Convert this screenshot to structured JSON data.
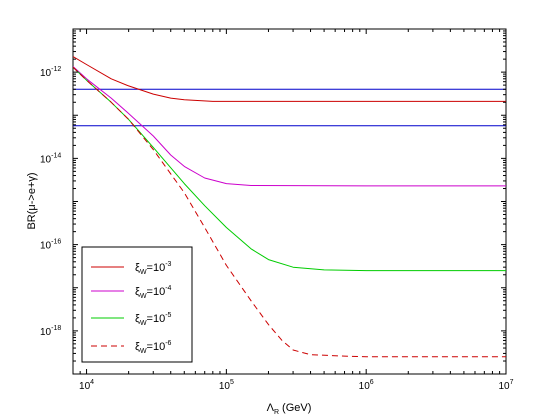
{
  "chart_data": {
    "type": "line",
    "title": "",
    "xlabel": {
      "main": "Λ",
      "sub": "R",
      "unit": " (GeV)"
    },
    "ylabel": "BR(μ->e+γ)",
    "x_scale": "log",
    "y_scale": "log",
    "xlim": [
      8000,
      10000000
    ],
    "ylim": [
      1e-19,
      1e-11
    ],
    "grid": false,
    "x_ticks": [
      {
        "value": 10000,
        "base": "10",
        "exp": "4"
      },
      {
        "value": 100000,
        "base": "10",
        "exp": "5"
      },
      {
        "value": 1000000,
        "base": "10",
        "exp": "6"
      },
      {
        "value": 10000000,
        "base": "10",
        "exp": "7"
      }
    ],
    "y_ticks": [
      {
        "value": 1e-12,
        "base": "10",
        "exp": "-12"
      },
      {
        "value": 1e-14,
        "base": "10",
        "exp": "-14"
      },
      {
        "value": 1e-16,
        "base": "10",
        "exp": "-16"
      },
      {
        "value": 1e-18,
        "base": "10",
        "exp": "-18"
      }
    ],
    "legend_position": "bottom-left",
    "reference_lines": [
      {
        "y": 4e-13,
        "color": "#0000cc"
      },
      {
        "y": 5.7e-14,
        "color": "#0000cc"
      }
    ],
    "series": [
      {
        "label": {
          "sym": "ξ",
          "sub": "W",
          "eq": "=10",
          "exp": "-3"
        },
        "color": "#cc0000",
        "dashed": false,
        "points": [
          [
            8000,
            2.3e-12
          ],
          [
            10000,
            1.5e-12
          ],
          [
            15000,
            7e-13
          ],
          [
            20000,
            4.8e-13
          ],
          [
            30000,
            3.1e-13
          ],
          [
            40000,
            2.5e-13
          ],
          [
            50000,
            2.3e-13
          ],
          [
            80000,
            2.1e-13
          ],
          [
            100000,
            2.1e-13
          ],
          [
            1000000,
            2.1e-13
          ],
          [
            10000000,
            2.1e-13
          ]
        ]
      },
      {
        "label": {
          "sym": "ξ",
          "sub": "W",
          "eq": "=10",
          "exp": "-4"
        },
        "color": "#cc00cc",
        "dashed": false,
        "points": [
          [
            8000,
            1.35e-12
          ],
          [
            10000,
            7e-13
          ],
          [
            15000,
            2.5e-13
          ],
          [
            20000,
            1.1e-13
          ],
          [
            30000,
            3.3e-14
          ],
          [
            40000,
            1.2e-14
          ],
          [
            50000,
            6.5e-15
          ],
          [
            70000,
            3.5e-15
          ],
          [
            100000,
            2.6e-15
          ],
          [
            150000,
            2.35e-15
          ],
          [
            1000000,
            2.3e-15
          ],
          [
            10000000,
            2.3e-15
          ]
        ]
      },
      {
        "label": {
          "sym": "ξ",
          "sub": "W",
          "eq": "=10",
          "exp": "-5"
        },
        "color": "#00cc00",
        "dashed": false,
        "points": [
          [
            8000,
            1.3e-12
          ],
          [
            10000,
            6.5e-13
          ],
          [
            15000,
            2e-13
          ],
          [
            20000,
            8e-14
          ],
          [
            30000,
            1.8e-14
          ],
          [
            50000,
            2.6e-15
          ],
          [
            70000,
            8e-16
          ],
          [
            100000,
            2.5e-16
          ],
          [
            150000,
            8e-17
          ],
          [
            200000,
            4.5e-17
          ],
          [
            300000,
            3e-17
          ],
          [
            500000,
            2.6e-17
          ],
          [
            1000000,
            2.5e-17
          ],
          [
            10000000,
            2.5e-17
          ]
        ]
      },
      {
        "label": {
          "sym": "ξ",
          "sub": "W",
          "eq": "=10",
          "exp": "-6"
        },
        "color": "#cc0000",
        "dashed": true,
        "points": [
          [
            8000,
            1.3e-12
          ],
          [
            10000,
            6.5e-13
          ],
          [
            15000,
            2e-13
          ],
          [
            20000,
            8e-14
          ],
          [
            30000,
            1.6e-14
          ],
          [
            50000,
            1.6e-15
          ],
          [
            70000,
            2.5e-16
          ],
          [
            100000,
            3.3e-17
          ],
          [
            150000,
            5e-18
          ],
          [
            200000,
            1.4e-18
          ],
          [
            250000,
            6e-19
          ],
          [
            300000,
            3.6e-19
          ],
          [
            400000,
            2.8e-19
          ],
          [
            700000,
            2.6e-19
          ],
          [
            1000000,
            2.5e-19
          ],
          [
            10000000,
            2.5e-19
          ]
        ]
      }
    ]
  }
}
